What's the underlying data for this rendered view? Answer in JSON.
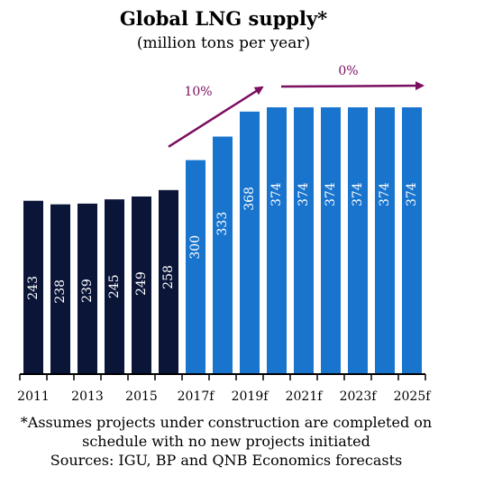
{
  "chart_data": {
    "type": "bar",
    "title": "Global LNG supply*",
    "subtitle": "(million tons per year)",
    "categories": [
      "2011",
      "2012",
      "2013",
      "2014",
      "2015",
      "2016",
      "2017f",
      "2018f",
      "2019f",
      "2020f",
      "2021f",
      "2022f",
      "2023f",
      "2024f",
      "2025f"
    ],
    "tick_labels": [
      "2011",
      "",
      "2013",
      "",
      "2015",
      "",
      "2017f",
      "",
      "2019f",
      "",
      "2021f",
      "",
      "2023f",
      "",
      "2025f"
    ],
    "values": [
      243,
      238,
      239,
      245,
      249,
      258,
      300,
      333,
      368,
      374,
      374,
      374,
      374,
      374,
      374
    ],
    "historical_count": 6,
    "ylim": [
      0,
      400
    ],
    "grid": false,
    "legend": "none",
    "colors": {
      "historical": "#0b1538",
      "forecast": "#1874cd",
      "annotation": "#7b0e5f"
    },
    "annotations": [
      {
        "text": "10%",
        "from_category": "2016",
        "to_category": "2019f"
      },
      {
        "text": "0%",
        "from_category": "2020f",
        "to_category": "2025f"
      }
    ]
  },
  "footnote": {
    "lines": [
      "*Assumes projects under construction are completed on",
      "schedule with no new projects initiated",
      "Sources: IGU, BP and QNB Economics forecasts"
    ]
  }
}
